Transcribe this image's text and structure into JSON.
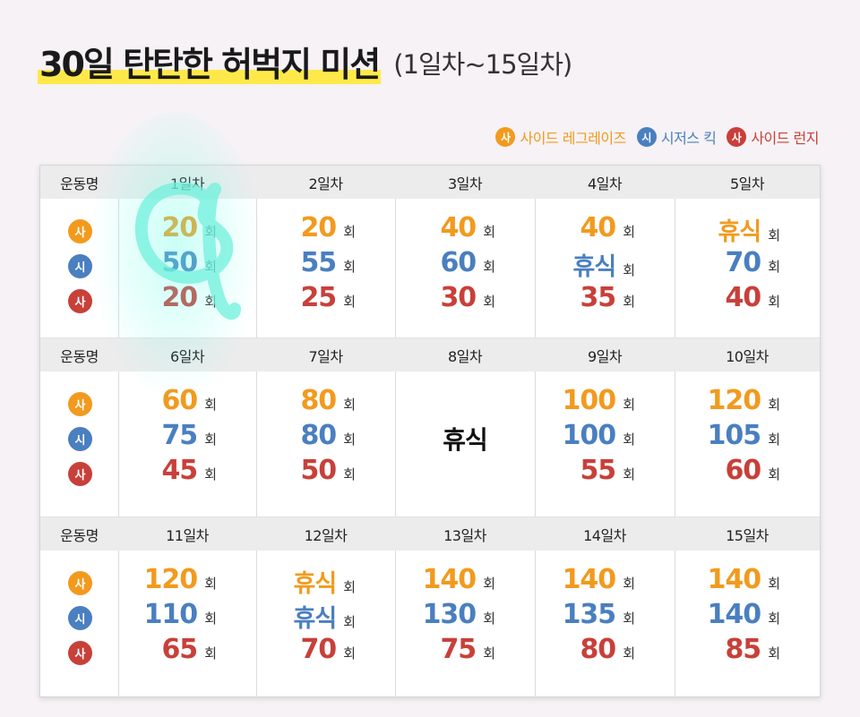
{
  "title": {
    "main": "30일 탄탄한 허벅지 미션",
    "sub": "(1일차~15일차)"
  },
  "legend": [
    {
      "badge": "사",
      "label": "사이드 레그레이즈",
      "color": "#f29a1e"
    },
    {
      "badge": "시",
      "label": "시저스 킥",
      "color": "#4a7fc0"
    },
    {
      "badge": "사",
      "label": "사이드 런지",
      "color": "#c8403a"
    }
  ],
  "exercise_badges": [
    {
      "text": "사",
      "color": "#f29a1e"
    },
    {
      "text": "시",
      "color": "#4a7fc0"
    },
    {
      "text": "사",
      "color": "#c8403a"
    }
  ],
  "value_colors": [
    "#f29a1e",
    "#4a7fc0",
    "#c8403a"
  ],
  "unit": "회",
  "header_label": "운동명",
  "rest_label": "휴식",
  "sections": [
    {
      "days": [
        {
          "label": "1일차",
          "values": [
            "20",
            "50",
            "20"
          ]
        },
        {
          "label": "2일차",
          "values": [
            "20",
            "55",
            "25"
          ]
        },
        {
          "label": "3일차",
          "values": [
            "40",
            "60",
            "30"
          ]
        },
        {
          "label": "4일차",
          "values": [
            "40",
            "휴식",
            "35"
          ]
        },
        {
          "label": "5일차",
          "values": [
            "휴식",
            "70",
            "40"
          ]
        }
      ]
    },
    {
      "days": [
        {
          "label": "6일차",
          "values": [
            "60",
            "75",
            "45"
          ]
        },
        {
          "label": "7일차",
          "values": [
            "80",
            "80",
            "50"
          ]
        },
        {
          "label": "8일차",
          "rest": "휴식"
        },
        {
          "label": "9일차",
          "values": [
            "100",
            "100",
            "55"
          ]
        },
        {
          "label": "10일차",
          "values": [
            "120",
            "105",
            "60"
          ]
        }
      ]
    },
    {
      "days": [
        {
          "label": "11일차",
          "values": [
            "120",
            "110",
            "65"
          ]
        },
        {
          "label": "12일차",
          "values": [
            "휴식",
            "휴식",
            "70"
          ]
        },
        {
          "label": "13일차",
          "values": [
            "140",
            "130",
            "75"
          ]
        },
        {
          "label": "14일차",
          "values": [
            "140",
            "135",
            "80"
          ]
        },
        {
          "label": "15일차",
          "values": [
            "140",
            "140",
            "85"
          ]
        }
      ]
    }
  ]
}
